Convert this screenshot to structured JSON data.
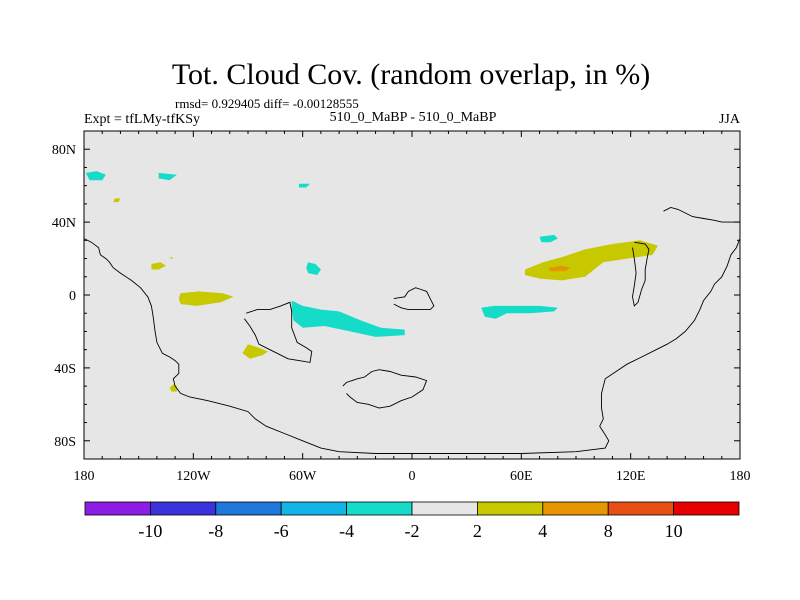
{
  "chart_data": {
    "type": "heatmap",
    "title": "Tot. Cloud Cov. (random overlap, in %)",
    "stats_text": "rmsd= 0.929405  diff= -0.00128555",
    "left_label": "Expt = tfLMy-tfKSy",
    "center_label": "510_0_MaBP - 510_0_MaBP",
    "right_label": "JJA",
    "x_range": [
      -180,
      180
    ],
    "y_range": [
      -90,
      90
    ],
    "x_ticks": [
      {
        "value": -180,
        "label": "180"
      },
      {
        "value": -120,
        "label": "120W"
      },
      {
        "value": -60,
        "label": "60W"
      },
      {
        "value": 0,
        "label": "0"
      },
      {
        "value": 60,
        "label": "60E"
      },
      {
        "value": 120,
        "label": "120E"
      },
      {
        "value": 180,
        "label": "180"
      }
    ],
    "y_ticks": [
      {
        "value": 80,
        "label": "80N"
      },
      {
        "value": 40,
        "label": "40N"
      },
      {
        "value": 0,
        "label": "0"
      },
      {
        "value": -40,
        "label": "40S"
      },
      {
        "value": -80,
        "label": "80S"
      }
    ],
    "colorbar": {
      "colors": [
        "#8c1ee6",
        "#3c32dc",
        "#1e78dc",
        "#14b4e6",
        "#14dcc8",
        "#e6e6e6",
        "#c8c800",
        "#e69600",
        "#e65014",
        "#e60000"
      ],
      "labels": [
        "-10",
        "-8",
        "-6",
        "-4",
        "-2",
        "2",
        "4",
        "8",
        "10"
      ]
    },
    "background_color": "#e6e6e6",
    "regions": [
      {
        "class": "-4 to -2",
        "color": "#14dcc8",
        "points": [
          [
            -179,
            67
          ],
          [
            -173,
            68
          ],
          [
            -168,
            66
          ],
          [
            -170,
            63
          ],
          [
            -177,
            63
          ]
        ]
      },
      {
        "class": "-4 to -2",
        "color": "#14dcc8",
        "points": [
          [
            -139,
            67
          ],
          [
            -129,
            66
          ],
          [
            -133,
            63
          ],
          [
            -139,
            64
          ]
        ]
      },
      {
        "class": "-4 to -2",
        "color": "#14dcc8",
        "points": [
          [
            -62,
            61
          ],
          [
            -56,
            61
          ],
          [
            -58,
            59
          ],
          [
            -62,
            59
          ]
        ]
      },
      {
        "class": "-4 to -2",
        "color": "#14dcc8",
        "points": [
          [
            -57,
            18
          ],
          [
            -53,
            17
          ],
          [
            -50,
            14
          ],
          [
            -52,
            11
          ],
          [
            -57,
            12
          ],
          [
            -58,
            15
          ]
        ]
      },
      {
        "class": "-4 to -2",
        "color": "#14dcc8",
        "points": [
          [
            -66,
            -3
          ],
          [
            -60,
            -6
          ],
          [
            -50,
            -8
          ],
          [
            -40,
            -9
          ],
          [
            -28,
            -14
          ],
          [
            -17,
            -18
          ],
          [
            -4,
            -19
          ],
          [
            -4,
            -22
          ],
          [
            -20,
            -23
          ],
          [
            -34,
            -20
          ],
          [
            -48,
            -17
          ],
          [
            -60,
            -18
          ],
          [
            -65,
            -14
          ],
          [
            -66,
            -8
          ]
        ]
      },
      {
        "class": "-4 to -2",
        "color": "#14dcc8",
        "points": [
          [
            38,
            -7
          ],
          [
            45,
            -6
          ],
          [
            57,
            -6
          ],
          [
            70,
            -6
          ],
          [
            80,
            -7
          ],
          [
            78,
            -9
          ],
          [
            65,
            -10
          ],
          [
            52,
            -10
          ],
          [
            46,
            -13
          ],
          [
            40,
            -12
          ]
        ]
      },
      {
        "class": "-4 to -2",
        "color": "#14dcc8",
        "points": [
          [
            70,
            32
          ],
          [
            78,
            33
          ],
          [
            80,
            31
          ],
          [
            76,
            29
          ],
          [
            71,
            29
          ]
        ]
      },
      {
        "class": "2 to 4",
        "color": "#c8c800",
        "points": [
          [
            -163,
            53
          ],
          [
            -160,
            53
          ],
          [
            -161,
            51
          ],
          [
            -164,
            51
          ]
        ]
      },
      {
        "class": "2 to 4",
        "color": "#c8c800",
        "points": [
          [
            -143,
            17
          ],
          [
            -138,
            18
          ],
          [
            -135,
            16
          ],
          [
            -139,
            14
          ],
          [
            -143,
            14
          ]
        ]
      },
      {
        "class": "2 to 4",
        "color": "#c8c800",
        "points": [
          [
            -133,
            20
          ],
          [
            -132,
            21
          ],
          [
            -131,
            20
          ]
        ]
      },
      {
        "class": "2 to 4",
        "color": "#c8c800",
        "points": [
          [
            -127,
            1
          ],
          [
            -117,
            2
          ],
          [
            -104,
            1
          ],
          [
            -98,
            -1
          ],
          [
            -105,
            -4
          ],
          [
            -118,
            -6
          ],
          [
            -127,
            -5
          ],
          [
            -128,
            -2
          ]
        ]
      },
      {
        "class": "2 to 4",
        "color": "#c8c800",
        "points": [
          [
            -90,
            -27
          ],
          [
            -84,
            -29
          ],
          [
            -79,
            -31
          ],
          [
            -82,
            -33
          ],
          [
            -89,
            -35
          ],
          [
            -93,
            -32
          ]
        ]
      },
      {
        "class": "2 to 4",
        "color": "#c8c800",
        "points": [
          [
            -131,
            -49
          ],
          [
            -129,
            -50
          ],
          [
            -129,
            -53
          ],
          [
            -132,
            -53
          ],
          [
            -133,
            -51
          ]
        ]
      },
      {
        "class": "2 to 4",
        "color": "#c8c800",
        "points": [
          [
            62,
            14
          ],
          [
            72,
            18
          ],
          [
            83,
            21
          ],
          [
            95,
            25
          ],
          [
            110,
            28
          ],
          [
            125,
            30
          ],
          [
            135,
            27
          ],
          [
            132,
            22
          ],
          [
            118,
            20
          ],
          [
            105,
            18
          ],
          [
            95,
            10
          ],
          [
            82,
            8
          ],
          [
            70,
            9
          ],
          [
            62,
            11
          ]
        ]
      },
      {
        "class": "4 to 8",
        "color": "#e69600",
        "points": [
          [
            75,
            15
          ],
          [
            82,
            16
          ],
          [
            87,
            15
          ],
          [
            84,
            13
          ],
          [
            76,
            13
          ]
        ]
      }
    ],
    "coastlines": [
      [
        [
          -180,
          31
        ],
        [
          -176,
          29
        ],
        [
          -172,
          26
        ],
        [
          -171,
          22
        ],
        [
          -168,
          20
        ],
        [
          -166,
          18
        ],
        [
          -164,
          15
        ],
        [
          -160,
          12
        ],
        [
          -154,
          8
        ],
        [
          -149,
          4
        ],
        [
          -145,
          -1
        ],
        [
          -143,
          -6
        ],
        [
          -142,
          -12
        ],
        [
          -141,
          -20
        ],
        [
          -140,
          -26
        ],
        [
          -137,
          -32
        ],
        [
          -133,
          -34
        ],
        [
          -130,
          -36
        ],
        [
          -128,
          -38
        ],
        [
          -128,
          -43
        ],
        [
          -131,
          -46
        ],
        [
          -130,
          -50
        ],
        [
          -127,
          -54
        ],
        [
          -122,
          -56
        ],
        [
          -112,
          -58
        ],
        [
          -100,
          -61
        ],
        [
          -90,
          -64
        ],
        [
          -86,
          -68
        ],
        [
          -80,
          -72
        ],
        [
          -70,
          -76
        ],
        [
          -60,
          -80
        ],
        [
          -55,
          -82
        ],
        [
          -50,
          -84
        ],
        [
          -40,
          -86
        ],
        [
          -20,
          -87
        ],
        [
          20,
          -87
        ],
        [
          60,
          -87
        ],
        [
          90,
          -86
        ],
        [
          106,
          -84
        ],
        [
          108,
          -80
        ],
        [
          105,
          -75
        ],
        [
          103,
          -72
        ],
        [
          105,
          -68
        ],
        [
          104,
          -62
        ],
        [
          104,
          -54
        ],
        [
          106,
          -46
        ],
        [
          112,
          -42
        ],
        [
          118,
          -38
        ],
        [
          126,
          -34
        ],
        [
          134,
          -30
        ],
        [
          140,
          -27
        ],
        [
          145,
          -24
        ],
        [
          150,
          -20
        ],
        [
          155,
          -14
        ],
        [
          158,
          -8
        ],
        [
          160,
          -3
        ],
        [
          164,
          2
        ],
        [
          166,
          6
        ],
        [
          170,
          10
        ],
        [
          173,
          16
        ],
        [
          175,
          22
        ],
        [
          178,
          26
        ],
        [
          180,
          31
        ]
      ],
      [
        [
          -91,
          -10
        ],
        [
          -85,
          -8
        ],
        [
          -78,
          -8
        ],
        [
          -72,
          -6
        ],
        [
          -67,
          -4
        ],
        [
          -66,
          -9
        ],
        [
          -66,
          -18
        ],
        [
          -63,
          -26
        ],
        [
          -58,
          -29
        ],
        [
          -55,
          -31
        ],
        [
          -56,
          -37
        ],
        [
          -62,
          -36
        ],
        [
          -68,
          -35
        ],
        [
          -74,
          -32
        ],
        [
          -80,
          -29
        ],
        [
          -84,
          -27
        ],
        [
          -86,
          -22
        ],
        [
          -89,
          -17
        ],
        [
          -92,
          -13
        ]
      ],
      [
        [
          -10,
          -2
        ],
        [
          -4,
          -1
        ],
        [
          -2,
          2
        ],
        [
          2,
          4
        ],
        [
          5,
          3
        ],
        [
          8,
          2
        ],
        [
          10,
          -2
        ],
        [
          12,
          -6
        ],
        [
          10,
          -8
        ],
        [
          6,
          -8
        ],
        [
          2,
          -8
        ],
        [
          -2,
          -8
        ],
        [
          -6,
          -7
        ],
        [
          -10,
          -5
        ]
      ],
      [
        [
          -38,
          -50
        ],
        [
          -36,
          -48
        ],
        [
          -30,
          -46
        ],
        [
          -26,
          -45
        ],
        [
          -22,
          -42
        ],
        [
          -18,
          -41
        ],
        [
          -12,
          -42
        ],
        [
          -6,
          -44
        ],
        [
          2,
          -45
        ],
        [
          8,
          -47
        ],
        [
          6,
          -52
        ],
        [
          0,
          -56
        ],
        [
          -6,
          -58
        ],
        [
          -12,
          -61
        ],
        [
          -18,
          -62
        ],
        [
          -24,
          -60
        ],
        [
          -30,
          -59
        ],
        [
          -34,
          -56
        ],
        [
          -36,
          -54
        ]
      ],
      [
        [
          138,
          46
        ],
        [
          142,
          48
        ],
        [
          146,
          47
        ],
        [
          150,
          45
        ],
        [
          154,
          43
        ],
        [
          160,
          42
        ],
        [
          166,
          41
        ],
        [
          170,
          40
        ],
        [
          176,
          40
        ],
        [
          180,
          40
        ]
      ],
      [
        [
          122,
          29
        ],
        [
          128,
          28
        ],
        [
          130,
          25
        ],
        [
          129,
          20
        ],
        [
          128,
          14
        ],
        [
          128,
          8
        ],
        [
          126,
          3
        ],
        [
          124,
          -4
        ],
        [
          122,
          -6
        ],
        [
          121,
          -1
        ],
        [
          122,
          5
        ],
        [
          123,
          12
        ],
        [
          122,
          20
        ],
        [
          121,
          26
        ]
      ]
    ]
  }
}
